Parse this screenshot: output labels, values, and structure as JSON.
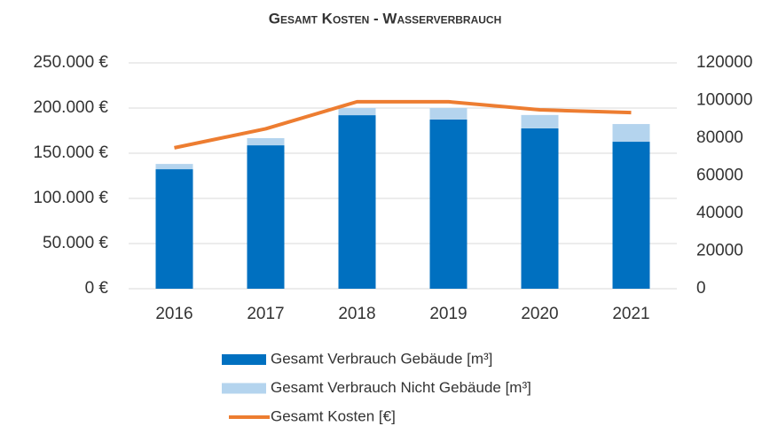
{
  "chart_data": {
    "type": "bar",
    "stacked": true,
    "title": "Gesamt Kosten - Wasserverbrauch",
    "categories": [
      "2016",
      "2017",
      "2018",
      "2019",
      "2020",
      "2021"
    ],
    "series": [
      {
        "name": "Gesamt Verbrauch Gebäude  [m³]",
        "color": "#0070c0",
        "axis": "y2",
        "values": [
          63500,
          76200,
          92200,
          89900,
          85200,
          78100
        ]
      },
      {
        "name": "Gesamt Verbrauch Nicht Gebäude  [m³]",
        "color": "#b4d4ee",
        "axis": "y2",
        "values": [
          2800,
          3800,
          3800,
          6100,
          7100,
          9400
        ]
      },
      {
        "name": "Gesamt Kosten  [€]",
        "color": "#ed7d31",
        "type": "line",
        "values": [
          156000,
          177000,
          207000,
          207000,
          198000,
          195000
        ]
      }
    ],
    "ylim": [
      0,
      250000
    ],
    "yticks": [
      {
        "value": 0,
        "label": "0 €"
      },
      {
        "value": 50000,
        "label": "50.000 €"
      },
      {
        "value": 100000,
        "label": "100.000 €"
      },
      {
        "value": 150000,
        "label": "150.000 €"
      },
      {
        "value": 200000,
        "label": "200.000 €"
      },
      {
        "value": 250000,
        "label": "250.000 €"
      }
    ],
    "y2lim": [
      0,
      120000
    ],
    "y2ticks": [
      0,
      20000,
      40000,
      60000,
      80000,
      100000,
      120000
    ],
    "grid": true,
    "legend": "bottom"
  }
}
